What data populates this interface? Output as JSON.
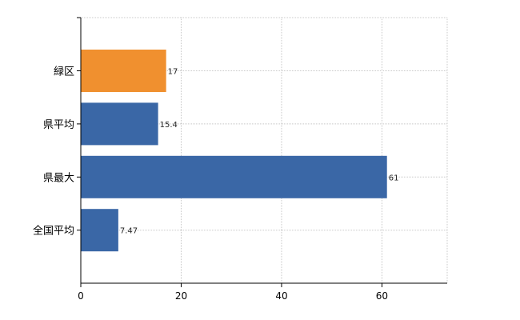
{
  "chart_data": {
    "type": "bar",
    "orientation": "horizontal",
    "categories": [
      "緑区",
      "県平均",
      "県最大",
      "全国平均"
    ],
    "values": [
      17,
      15.4,
      61,
      7.47
    ],
    "data_labels": [
      "17",
      "15.4",
      "61",
      "7.47"
    ],
    "bar_colors": [
      "#f0902f",
      "#3a67a6",
      "#3a67a6",
      "#3a67a6"
    ],
    "highlight_color": "#f0902f",
    "bar_color": "#3a67a6",
    "title": "",
    "xlabel": "",
    "ylabel": "",
    "xlim": [
      0,
      73
    ],
    "x_ticks": [
      0,
      20,
      40,
      60
    ],
    "x_tick_labels": [
      "0",
      "20",
      "40",
      "60"
    ],
    "grid": true,
    "grid_style": "dotted vertical and horizontal",
    "legend": "none"
  }
}
